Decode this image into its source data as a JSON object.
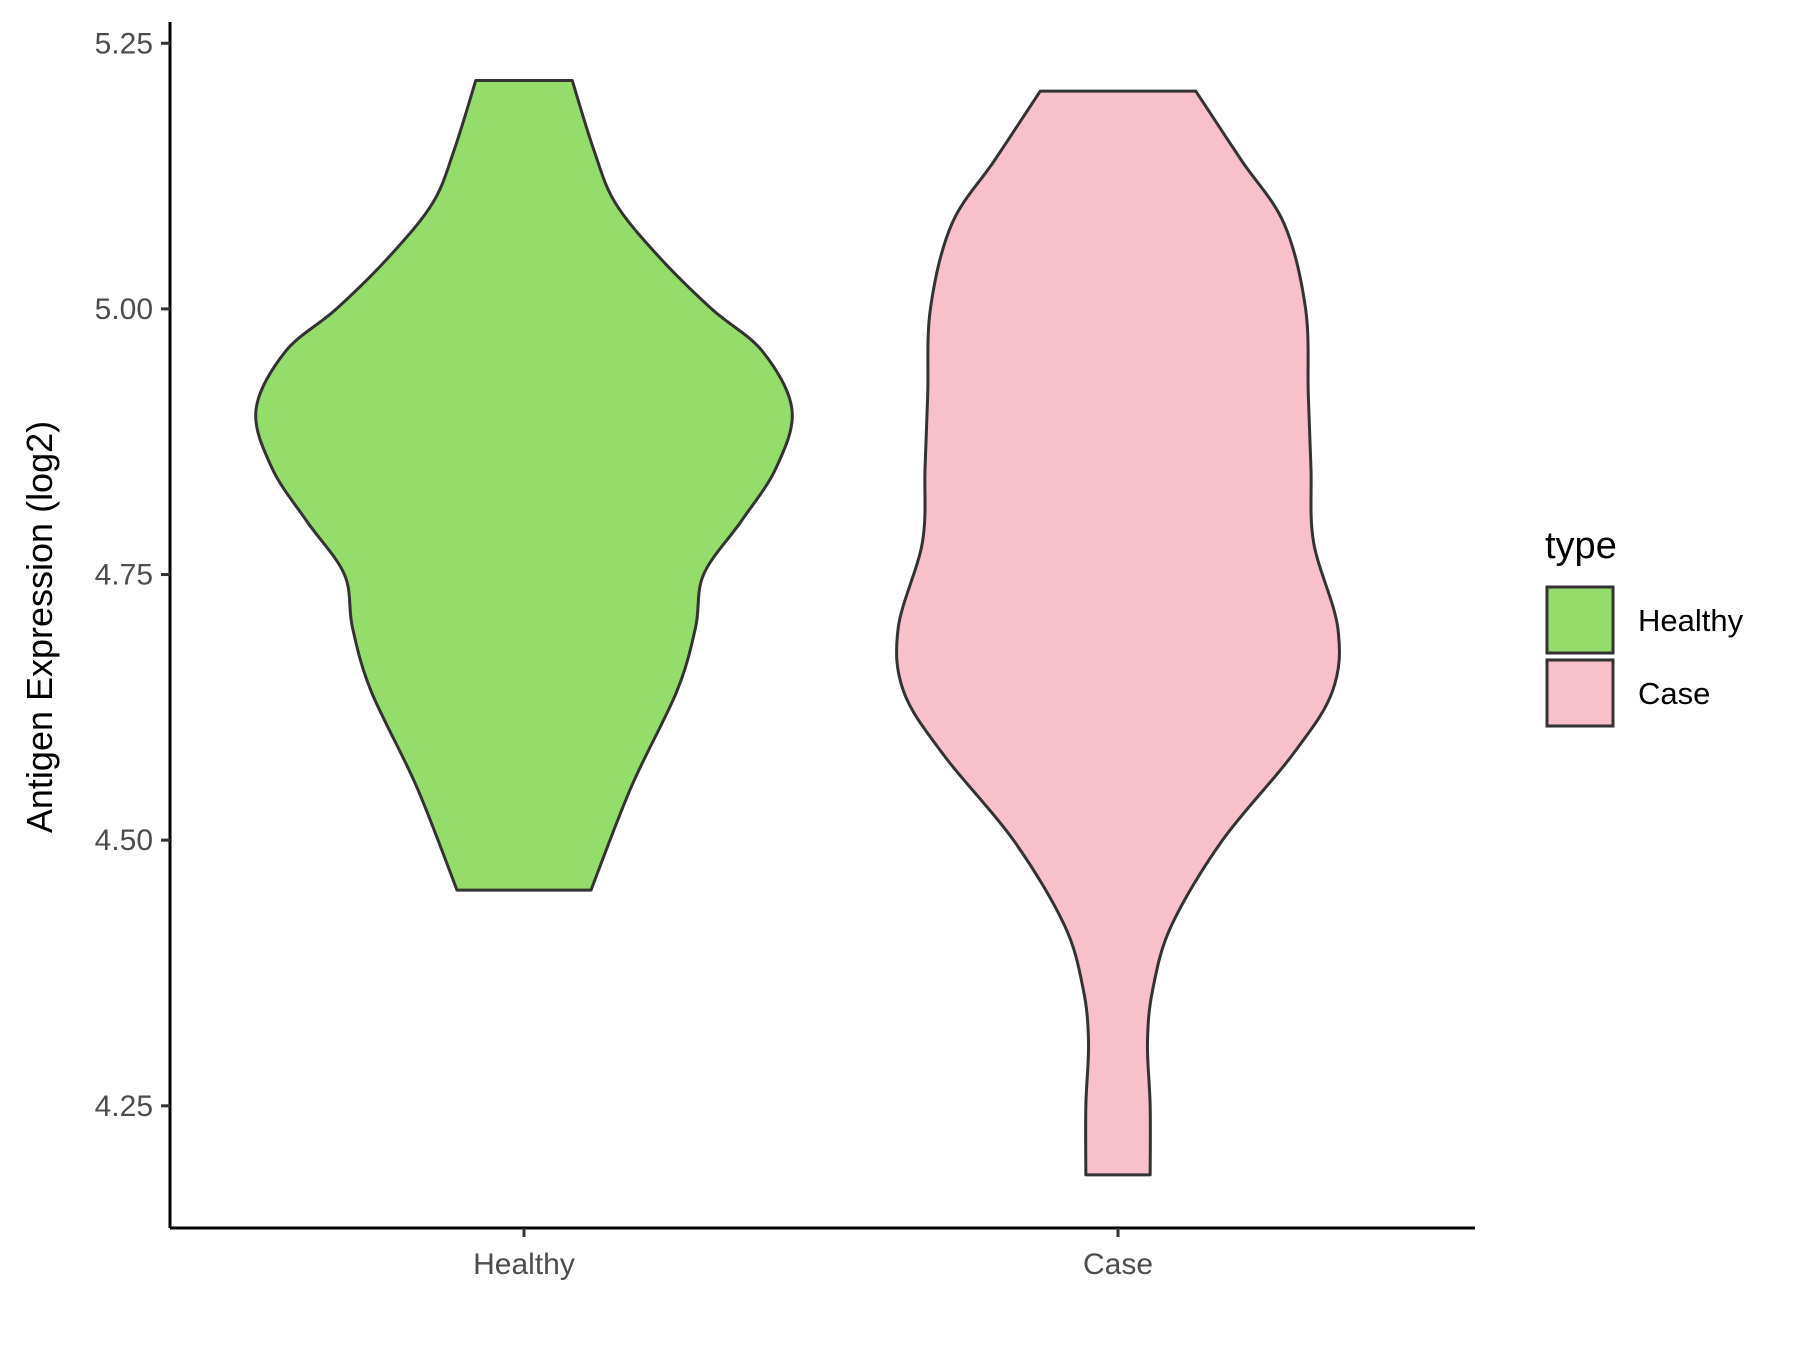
{
  "chart_data": {
    "type": "violin",
    "title": "",
    "xlabel": "",
    "ylabel": "Antigen Expression (log2)",
    "categories": [
      "Healthy",
      "Case"
    ],
    "yticks": [
      "4.25",
      "4.50",
      "4.75",
      "5.00",
      "5.25"
    ],
    "ylim": [
      4.135,
      5.27
    ],
    "grid": false,
    "legend": {
      "title": "type",
      "placement": "right",
      "entries": [
        {
          "label": "Healthy",
          "color": "#95DD6B"
        },
        {
          "label": "Case",
          "color": "#F8C0CB"
        }
      ]
    },
    "series": [
      {
        "category": "Healthy",
        "color": "#95DD6B",
        "min": 4.453,
        "max": 5.215,
        "density": [
          [
            4.453,
            0.25
          ],
          [
            4.55,
            0.4
          ],
          [
            4.64,
            0.57
          ],
          [
            4.7,
            0.64
          ],
          [
            4.75,
            0.67
          ],
          [
            4.8,
            0.81
          ],
          [
            4.85,
            0.94
          ],
          [
            4.905,
            1.0
          ],
          [
            4.96,
            0.89
          ],
          [
            5.0,
            0.7
          ],
          [
            5.05,
            0.5
          ],
          [
            5.1,
            0.34
          ],
          [
            5.15,
            0.26
          ],
          [
            5.215,
            0.18
          ]
        ]
      },
      {
        "category": "Case",
        "color": "#F8C0CB",
        "min": 4.185,
        "max": 5.205,
        "density": [
          [
            4.185,
            0.12
          ],
          [
            4.25,
            0.12
          ],
          [
            4.31,
            0.11
          ],
          [
            4.36,
            0.13
          ],
          [
            4.42,
            0.2
          ],
          [
            4.5,
            0.39
          ],
          [
            4.58,
            0.65
          ],
          [
            4.64,
            0.8
          ],
          [
            4.7,
            0.82
          ],
          [
            4.78,
            0.73
          ],
          [
            4.85,
            0.72
          ],
          [
            4.92,
            0.71
          ],
          [
            5.0,
            0.7
          ],
          [
            5.08,
            0.62
          ],
          [
            5.14,
            0.46
          ],
          [
            5.205,
            0.29
          ]
        ]
      }
    ]
  }
}
